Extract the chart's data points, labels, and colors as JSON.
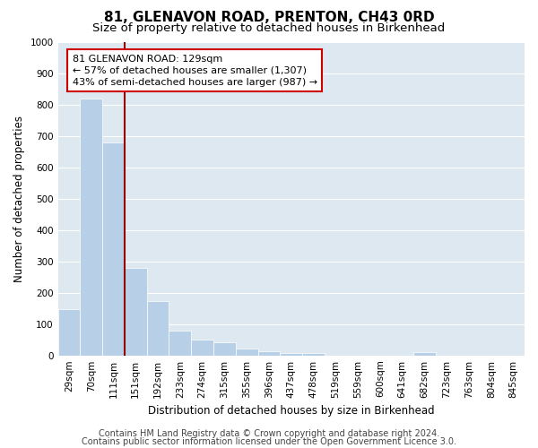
{
  "title": "81, GLENAVON ROAD, PRENTON, CH43 0RD",
  "subtitle": "Size of property relative to detached houses in Birkenhead",
  "xlabel": "Distribution of detached houses by size in Birkenhead",
  "ylabel": "Number of detached properties",
  "categories": [
    "29sqm",
    "70sqm",
    "111sqm",
    "151sqm",
    "192sqm",
    "233sqm",
    "274sqm",
    "315sqm",
    "355sqm",
    "396sqm",
    "437sqm",
    "478sqm",
    "519sqm",
    "559sqm",
    "600sqm",
    "641sqm",
    "682sqm",
    "723sqm",
    "763sqm",
    "804sqm",
    "845sqm"
  ],
  "values": [
    148,
    820,
    680,
    280,
    172,
    78,
    50,
    42,
    22,
    12,
    8,
    8,
    0,
    0,
    0,
    0,
    10,
    0,
    0,
    0,
    0
  ],
  "bar_color": "#b8cfe8",
  "vline_x": 2.5,
  "vline_color": "#990000",
  "ylim": [
    0,
    1000
  ],
  "yticks": [
    0,
    100,
    200,
    300,
    400,
    500,
    600,
    700,
    800,
    900,
    1000
  ],
  "annotation_text": "81 GLENAVON ROAD: 129sqm\n← 57% of detached houses are smaller (1,307)\n43% of semi-detached houses are larger (987) →",
  "annotation_box_edge": "#cc0000",
  "footer1": "Contains HM Land Registry data © Crown copyright and database right 2024.",
  "footer2": "Contains public sector information licensed under the Open Government Licence 3.0.",
  "fig_bg": "#ffffff",
  "plot_bg": "#dde8f0",
  "grid_color": "#ffffff",
  "title_fontsize": 11,
  "subtitle_fontsize": 9.5,
  "axis_label_fontsize": 8.5,
  "tick_fontsize": 7.5,
  "footer_fontsize": 7,
  "annot_fontsize": 8
}
